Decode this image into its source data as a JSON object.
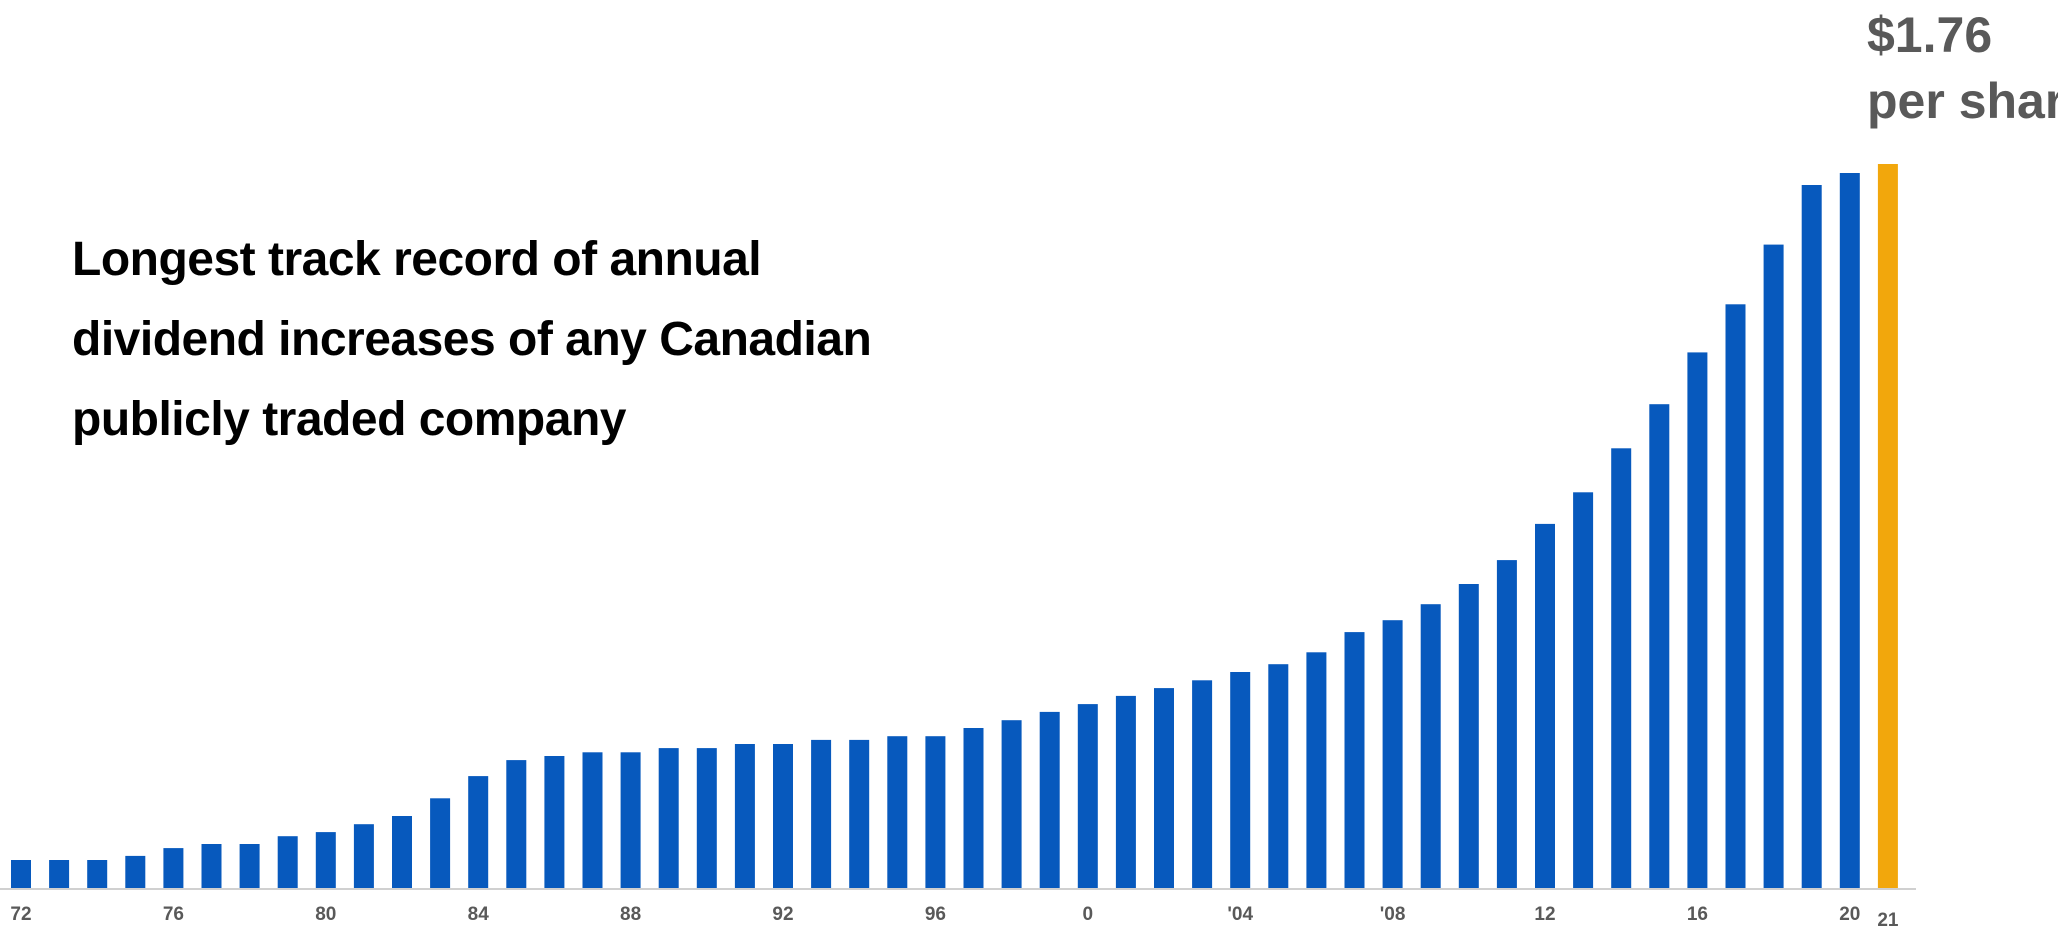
{
  "headline": {
    "line1": "Longest track record of annual",
    "line2": "dividend increases of any Canadian",
    "line3": "publicly traded company"
  },
  "callout": {
    "value": "$1.76",
    "unit": "per share"
  },
  "colors": {
    "bar": "#0759bd",
    "highlight": "#f2a70c",
    "axis": "#d0d0d0",
    "tick": "#595959"
  },
  "chart_data": {
    "type": "bar",
    "title": "",
    "xlabel": "",
    "ylabel": "",
    "ylim": [
      0,
      1.76
    ],
    "grid": false,
    "categories": [
      "72",
      "73",
      "74",
      "75",
      "76",
      "77",
      "78",
      "79",
      "80",
      "81",
      "82",
      "83",
      "84",
      "85",
      "86",
      "87",
      "88",
      "89",
      "90",
      "91",
      "92",
      "93",
      "94",
      "95",
      "96",
      "97",
      "98",
      "99",
      "0",
      "01",
      "02",
      "03",
      "'04",
      "05",
      "06",
      "07",
      "'08",
      "09",
      "10",
      "11",
      "12",
      "13",
      "14",
      "15",
      "16",
      "17",
      "18",
      "19",
      "20",
      "21"
    ],
    "tick_labels": [
      {
        "category": "72",
        "label": "72"
      },
      {
        "category": "76",
        "label": "76"
      },
      {
        "category": "80",
        "label": "80"
      },
      {
        "category": "84",
        "label": "84"
      },
      {
        "category": "88",
        "label": "88"
      },
      {
        "category": "92",
        "label": "92"
      },
      {
        "category": "96",
        "label": "96"
      },
      {
        "category": "0",
        "label": "0"
      },
      {
        "category": "'04",
        "label": "'04"
      },
      {
        "category": "'08",
        "label": "'08"
      },
      {
        "category": "12",
        "label": "12"
      },
      {
        "category": "16",
        "label": "16"
      },
      {
        "category": "20",
        "label": "20"
      },
      {
        "category": "21",
        "label": "21"
      }
    ],
    "values": [
      0.068,
      0.068,
      0.068,
      0.078,
      0.097,
      0.107,
      0.107,
      0.126,
      0.136,
      0.155,
      0.175,
      0.218,
      0.272,
      0.311,
      0.321,
      0.33,
      0.33,
      0.34,
      0.34,
      0.35,
      0.35,
      0.36,
      0.36,
      0.369,
      0.369,
      0.389,
      0.408,
      0.428,
      0.447,
      0.467,
      0.486,
      0.505,
      0.525,
      0.544,
      0.573,
      0.622,
      0.651,
      0.69,
      0.739,
      0.797,
      0.885,
      0.962,
      1.069,
      1.176,
      1.302,
      1.419,
      1.564,
      1.709,
      1.738,
      1.76
    ],
    "highlight_index": 49
  }
}
